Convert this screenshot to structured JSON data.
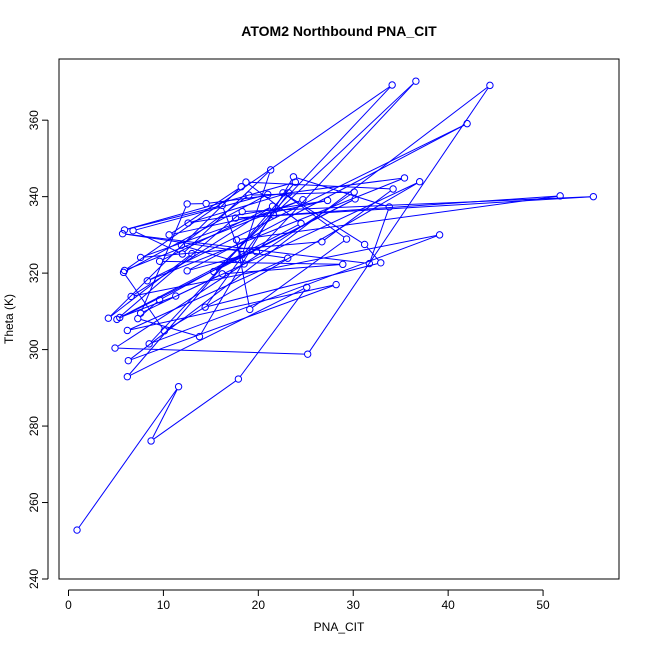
{
  "chart_data": {
    "type": "line",
    "title": "ATOM2 Northbound PNA_CIT",
    "xlabel": "PNA_CIT",
    "ylabel": "Theta (K)",
    "xlim": [
      -1,
      58
    ],
    "ylim": [
      240,
      376
    ],
    "xticks": [
      0,
      10,
      20,
      30,
      40,
      50
    ],
    "yticks": [
      240,
      260,
      280,
      300,
      320,
      340,
      360
    ],
    "grid": false,
    "legend": "none",
    "colors": {
      "series": "#0000ff",
      "axis": "#000000"
    },
    "markers": "open-circle",
    "series": [
      {
        "x": [
          0.9,
          11.6,
          8.7,
          17.9,
          25.1,
          6.2,
          23.9,
          5.9,
          16.2,
          18.5,
          11.9,
          19.0,
          30.1,
          4.9,
          25.2,
          44.4,
          6.3,
          28.2,
          6.2,
          23.1,
          5.7,
          31.7,
          33.8,
          23.7,
          13.8,
          7.3,
          9.6,
          18.3,
          21.3,
          12.0,
          6.8,
          21.0,
          5.8,
          10.1,
          37.0,
          11.3,
          5.4,
          24.5,
          18.7,
          34.2,
          26.7,
          7.6,
          24.7,
          5.9,
          34.1,
          8.5,
          39.1,
          6.6,
          21.5,
          9.6,
          28.9,
          16.2,
          7.6,
          12.5,
          14.5,
          35.4,
          8.3,
          42.0,
          12.5,
          19.8,
          36.6,
          21.6,
          15.3,
          30.2,
          5.1,
          18.3,
          55.3,
          17.6,
          51.8,
          17.7,
          19.1,
          29.3,
          22.6,
          31.2,
          32.9,
          14.4,
          23.2,
          12.6,
          27.3,
          10.6,
          18.2,
          4.2,
          13.0
        ],
        "y": [
          252.8,
          290.3,
          276.1,
          292.3,
          316.3,
          292.9,
          343.8,
          331.3,
          337.7,
          322.4,
          327.3,
          340.4,
          341.2,
          300.4,
          298.8,
          369.1,
          297.1,
          317.0,
          305.0,
          323.9,
          330.3,
          322.5,
          337.3,
          345.2,
          303.4,
          308.1,
          313.0,
          324.8,
          347.0,
          325.0,
          331.1,
          340.6,
          320.2,
          304.9,
          343.9,
          314.0,
          308.4,
          333.0,
          343.8,
          342.0,
          328.2,
          324.1,
          339.2,
          320.7,
          369.2,
          301.5,
          330.0,
          313.9,
          337.5,
          323.1,
          322.3,
          319.8,
          309.5,
          338.1,
          338.2,
          344.9,
          318.0,
          359.1,
          320.6,
          325.6,
          370.2,
          335.2,
          320.4,
          339.4,
          307.9,
          336.1,
          340.0,
          334.4,
          340.2,
          328.7,
          310.5,
          328.9,
          341.0,
          327.5,
          322.7,
          311.1,
          341.0,
          333.1,
          339.0,
          330.0,
          342.6,
          308.2,
          325.1
        ]
      }
    ]
  }
}
